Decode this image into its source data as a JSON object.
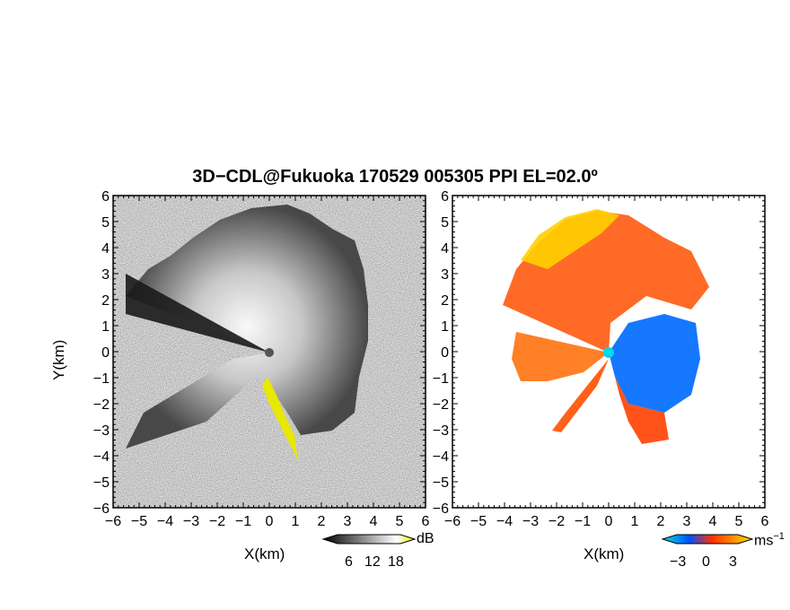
{
  "title": "3D−CDL@Fukuoka 170529 005305 PPI EL=02.0º",
  "chart_data": [
    {
      "type": "heatmap",
      "panel": "reflectivity",
      "xlabel": "X(km)",
      "ylabel": "Y(km)",
      "xlim": [
        -6,
        6
      ],
      "ylim": [
        -6,
        6
      ],
      "x_ticks": [
        "−6",
        "−5",
        "−4",
        "−3",
        "−2",
        "−1",
        "0",
        "1",
        "2",
        "3",
        "4",
        "5",
        "6"
      ],
      "y_ticks": [
        "6",
        "5",
        "4",
        "3",
        "2",
        "1",
        "0",
        "−1",
        "−2",
        "−3",
        "−4",
        "−5",
        "−6"
      ],
      "colorbar": {
        "unit": "dB",
        "ticks": [
          "6",
          "12",
          "18"
        ],
        "colors": [
          "#000000",
          "#ffffff",
          "#e8e800"
        ]
      }
    },
    {
      "type": "heatmap",
      "panel": "doppler-velocity",
      "xlabel": "X(km)",
      "xlim": [
        -6,
        6
      ],
      "ylim": [
        -6,
        6
      ],
      "x_ticks": [
        "−6",
        "−5",
        "−4",
        "−3",
        "−2",
        "−1",
        "0",
        "1",
        "2",
        "3",
        "4",
        "5",
        "6"
      ],
      "y_ticks": [
        "6",
        "5",
        "4",
        "3",
        "2",
        "1",
        "0",
        "−1",
        "−2",
        "−3",
        "−4",
        "−5",
        "−6"
      ],
      "colorbar": {
        "unit": "ms",
        "unit_exponent": "−1",
        "ticks": [
          "−3",
          "0",
          "3"
        ],
        "colors": [
          "#00e0e0",
          "#0050ff",
          "#ff3000",
          "#ffe000"
        ]
      }
    }
  ]
}
